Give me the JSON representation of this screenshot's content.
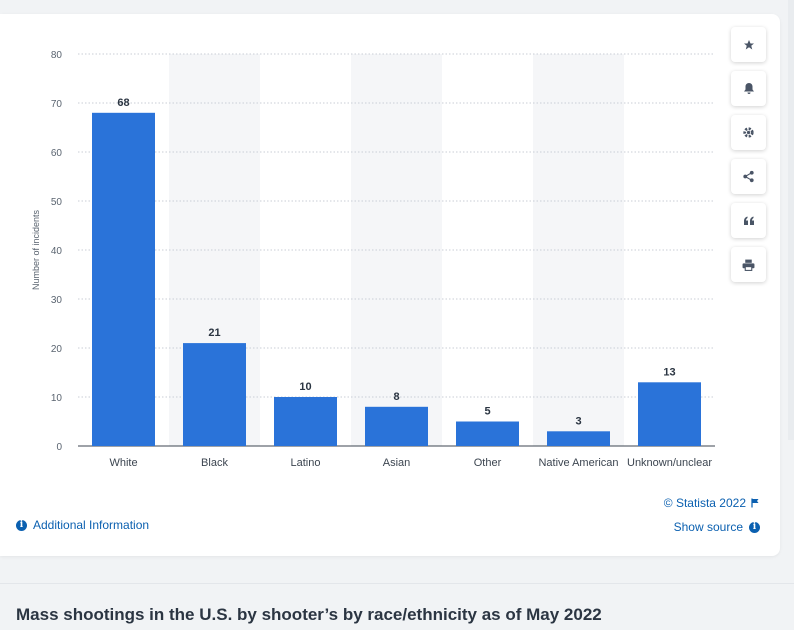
{
  "chart_data": {
    "type": "bar",
    "categories": [
      "White",
      "Black",
      "Latino",
      "Asian",
      "Other",
      "Native American",
      "Unknown/unclear"
    ],
    "values": [
      68,
      21,
      10,
      8,
      5,
      3,
      13
    ],
    "title": "Mass shootings in the U.S. by shooter’s by race/ethnicity as of May 2022",
    "xlabel": "",
    "ylabel": "Number of incidents",
    "ylim": [
      0,
      80
    ],
    "yticks": [
      0,
      10,
      20,
      30,
      40,
      50,
      60,
      70,
      80
    ],
    "grid": true,
    "bar_color": "#2a73d9"
  },
  "toolbar": {
    "buttons": [
      {
        "icon": "star-icon"
      },
      {
        "icon": "bell-icon"
      },
      {
        "icon": "gear-icon"
      },
      {
        "icon": "share-icon"
      },
      {
        "icon": "quote-icon"
      },
      {
        "icon": "print-icon"
      }
    ]
  },
  "footer": {
    "copyright": "© Statista 2022",
    "show_source": "Show source",
    "additional_info": "Additional Information",
    "info_glyph": "i"
  },
  "caption": "Mass shootings in the U.S. by shooter’s by race/ethnicity as of May 2022",
  "colors": {
    "link": "#0b60b0",
    "bar": "#2a73d9"
  }
}
